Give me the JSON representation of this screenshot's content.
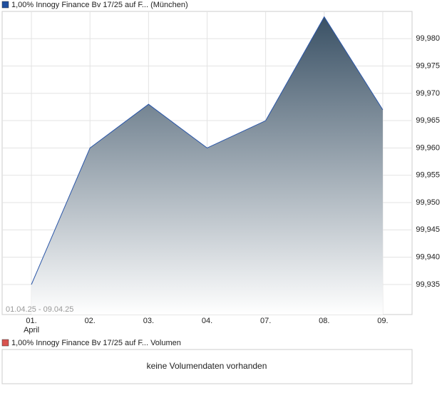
{
  "chart_data": {
    "type": "area",
    "title": "1,00% Innogy Finance Bv 17/25 auf F... (München)",
    "categories": [
      "01.",
      "02.",
      "03.",
      "04.",
      "07.",
      "08.",
      "09."
    ],
    "month_label": "April",
    "date_range": "01.04.25 - 09.04.25",
    "values": [
      99.935,
      99.96,
      99.968,
      99.96,
      99.965,
      99.984,
      99.967
    ],
    "color": "#2a56a8",
    "legend_color": "#1f4f9e",
    "ylim": [
      99.9295,
      99.985
    ],
    "yticks": [
      {
        "value": 99.935,
        "label": "99,935"
      },
      {
        "value": 99.94,
        "label": "99,940"
      },
      {
        "value": 99.945,
        "label": "99,945"
      },
      {
        "value": 99.95,
        "label": "99,950"
      },
      {
        "value": 99.955,
        "label": "99,955"
      },
      {
        "value": 99.96,
        "label": "99,960"
      },
      {
        "value": 99.965,
        "label": "99,965"
      },
      {
        "value": 99.97,
        "label": "99,970"
      },
      {
        "value": 99.975,
        "label": "99,975"
      },
      {
        "value": 99.98,
        "label": "99,980"
      }
    ],
    "grid": true
  },
  "volume_panel": {
    "title": "1,00% Innogy Finance Bv 17/25 auf F... Volumen",
    "legend_color": "#d9534f",
    "message": "keine Volumendaten vorhanden"
  }
}
